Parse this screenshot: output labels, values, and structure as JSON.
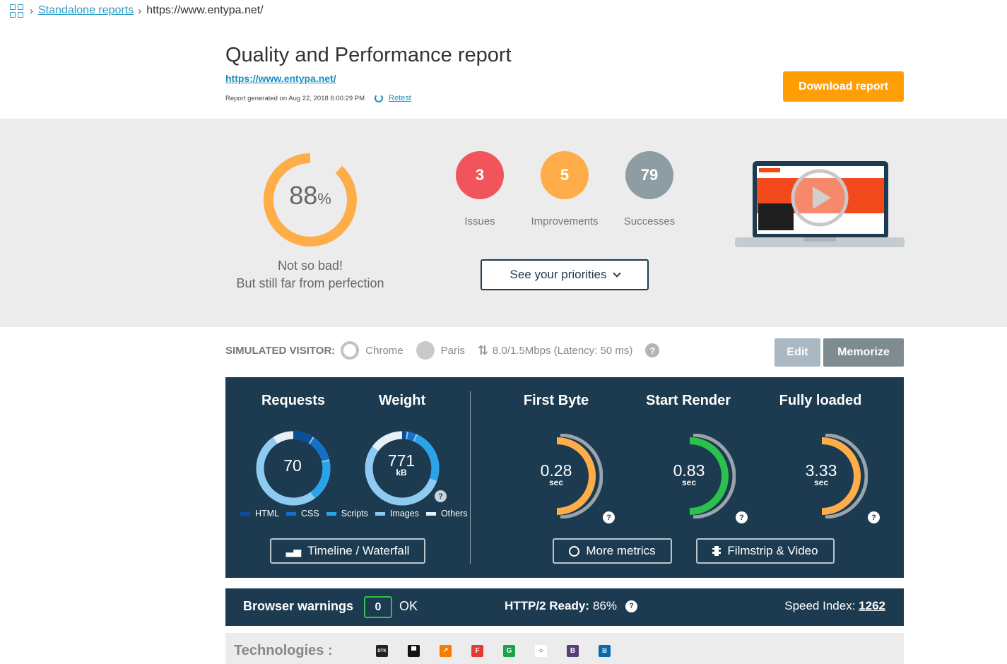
{
  "breadcrumb": {
    "link_label": "Standalone reports",
    "current": "https://www.entypa.net/"
  },
  "header": {
    "title": "Quality and Performance report",
    "url": "https://www.entypa.net/",
    "generated": "Report generated on Aug 22, 2018 6:00:29 PM",
    "retest_label": "Retest",
    "download_label": "Download report"
  },
  "score": {
    "value": "88",
    "unit": "%",
    "fraction": 0.88,
    "verdict_line1": "Not so bad!",
    "verdict_line2": "But still far from perfection",
    "color": "#ffad48"
  },
  "counters": [
    {
      "value": "3",
      "label": "Issues",
      "color": "#f2545b"
    },
    {
      "value": "5",
      "label": "Improvements",
      "color": "#ffad48"
    },
    {
      "value": "79",
      "label": "Successes",
      "color": "#8e9da3"
    }
  ],
  "priorities_label": "See your priorities",
  "visitor": {
    "label": "SIMULATED VISITOR:",
    "browser": "Chrome",
    "location": "Paris",
    "connection": "8.0/1.5Mbps (Latency: 50 ms)",
    "help": "?",
    "edit_label": "Edit",
    "memorize_label": "Memorize"
  },
  "metrics": {
    "requests": {
      "title": "Requests",
      "value": "70"
    },
    "weight": {
      "title": "Weight",
      "value": "771",
      "unit": "kB"
    },
    "legend": [
      {
        "label": "HTML",
        "color": "#0a4f9c"
      },
      {
        "label": "CSS",
        "color": "#1570c9"
      },
      {
        "label": "Scripts",
        "color": "#2ba3e8"
      },
      {
        "label": "Images",
        "color": "#8ecaf2"
      },
      {
        "label": "Others",
        "color": "#e7f0f6"
      }
    ],
    "first_byte": {
      "title": "First Byte",
      "value": "0.28",
      "unit": "sec",
      "color": "#ffad48"
    },
    "start_render": {
      "title": "Start Render",
      "value": "0.83",
      "unit": "sec",
      "color": "#2bc24c"
    },
    "fully_loaded": {
      "title": "Fully loaded",
      "value": "3.33",
      "unit": "sec",
      "color": "#ffad48"
    },
    "help": "?",
    "timeline_label": "Timeline / Waterfall",
    "more_metrics_label": "More metrics",
    "filmstrip_label": "Filmstrip & Video"
  },
  "warnings": {
    "label": "Browser warnings",
    "count": "0",
    "status": "OK",
    "http2_label": "HTTP/2 Ready:",
    "http2_value": "86%",
    "help": "?",
    "speed_label": "Speed Index:",
    "speed_value": "1262"
  },
  "technologies": {
    "label": "Technologies :",
    "icons": [
      {
        "name": "dtk-icon",
        "bg": "#222222",
        "glyph": "DTK"
      },
      {
        "name": "flag-icon",
        "bg": "#111111",
        "glyph": "▀"
      },
      {
        "name": "analytics-chart-icon",
        "bg": "#f57c00",
        "glyph": "↗"
      },
      {
        "name": "font-icon",
        "bg": "#e53935",
        "glyph": "F"
      },
      {
        "name": "g-icon",
        "bg": "#1aa34a",
        "glyph": "G"
      },
      {
        "name": "circle-icon",
        "bg": "#ffffff",
        "glyph": "○"
      },
      {
        "name": "bootstrap-icon",
        "bg": "#563d7c",
        "glyph": "B"
      },
      {
        "name": "jquery-icon",
        "bg": "#0769ad",
        "glyph": "≋"
      }
    ]
  }
}
